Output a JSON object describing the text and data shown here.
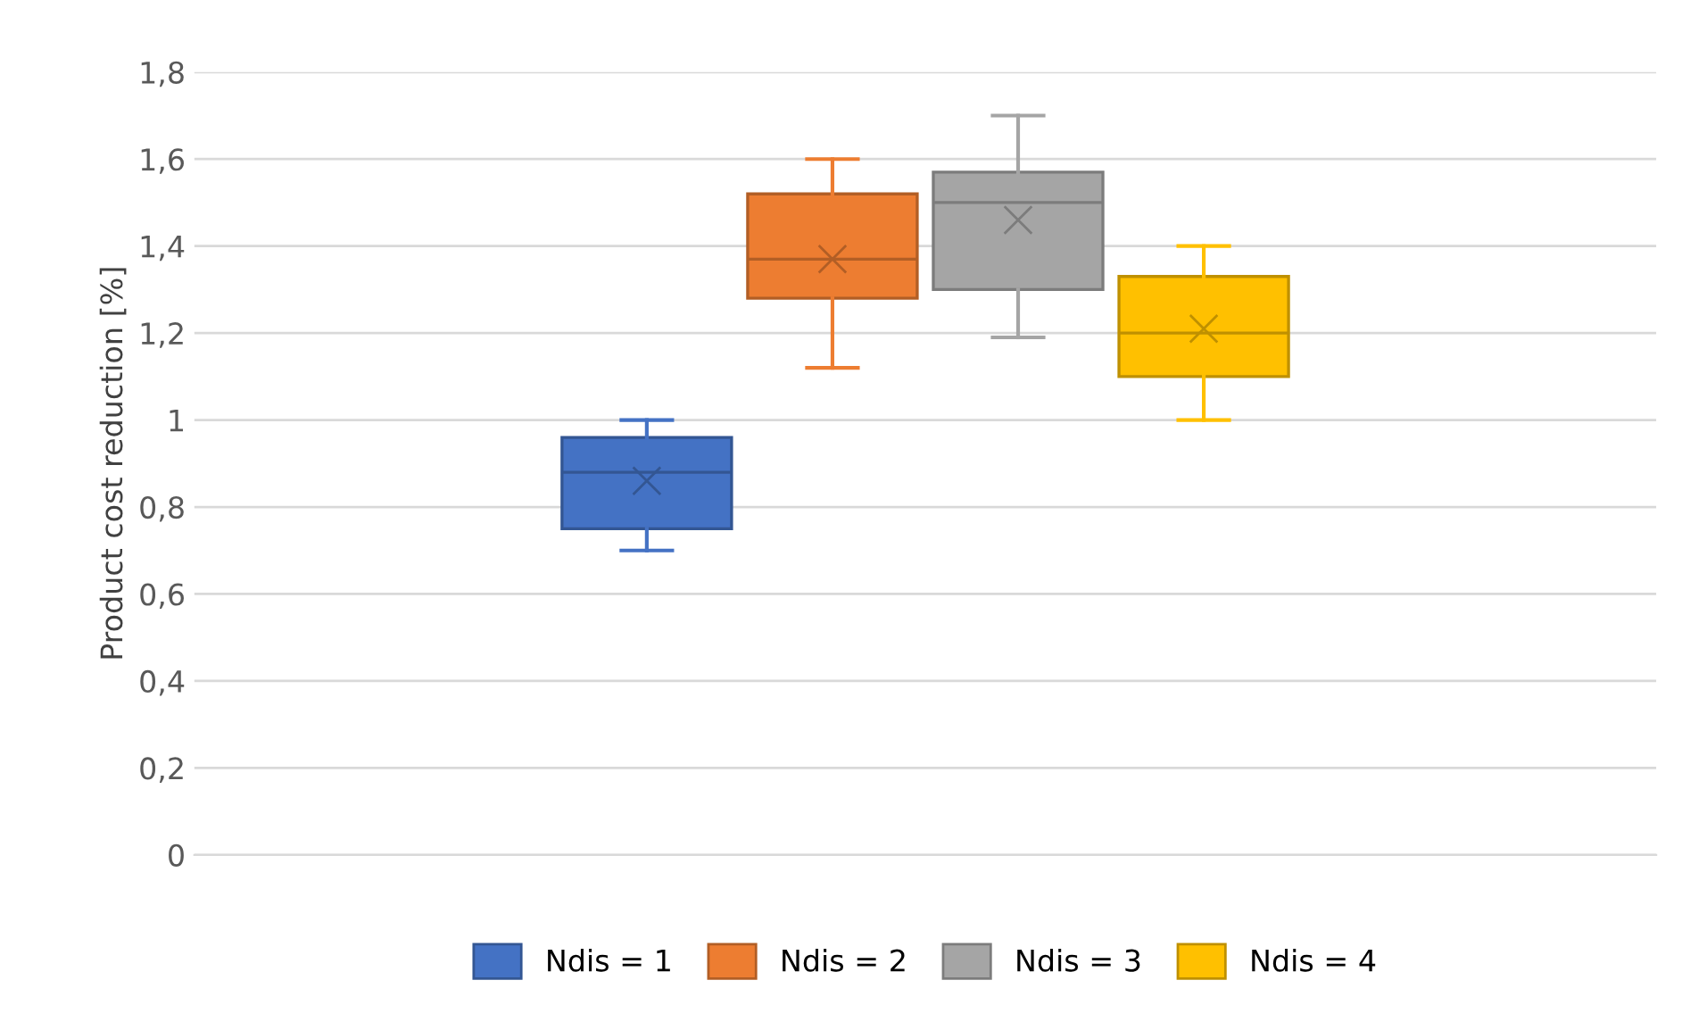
{
  "chart_data": {
    "type": "box",
    "ylabel": "Product cost reduction [%]",
    "categories": [
      null
    ],
    "ylim": [
      0,
      1.8
    ],
    "yticks": [
      0,
      {
        "value": 0.2,
        "label": "0,2"
      },
      {
        "value": 0.4,
        "label": "0,4"
      },
      {
        "value": 0.6,
        "label": "0,6"
      },
      {
        "value": 0.8,
        "label": "0,8"
      },
      1,
      {
        "value": 1.2,
        "label": "1,2"
      },
      {
        "value": 1.4,
        "label": "1,4"
      },
      {
        "value": 1.6,
        "label": "1,6"
      },
      {
        "value": 1.8,
        "label": "1,8"
      }
    ],
    "grid": "y",
    "legend": "bottom",
    "tick_labels": "y",
    "marker": "cross",
    "series": [
      {
        "name": "Ndis = 1",
        "color": "#4472c4",
        "boxes": [
          {
            "low": 0.7,
            "q1": 0.75,
            "median": 0.88,
            "q3": 0.96,
            "high": 1.0,
            "mean": 0.86
          }
        ]
      },
      {
        "name": "Ndis = 2",
        "color": "#ed7d31",
        "boxes": [
          {
            "low": 1.12,
            "q1": 1.28,
            "median": 1.37,
            "q3": 1.52,
            "high": 1.6,
            "mean": 1.37
          }
        ]
      },
      {
        "name": "Ndis = 3",
        "color": "#a5a5a5",
        "boxes": [
          {
            "low": 1.19,
            "q1": 1.3,
            "median": 1.5,
            "q3": 1.57,
            "high": 1.7,
            "mean": 1.46
          }
        ]
      },
      {
        "name": "Ndis = 4",
        "color": "#ffc000",
        "boxes": [
          {
            "low": 1.0,
            "q1": 1.1,
            "median": 1.2,
            "q3": 1.33,
            "high": 1.4,
            "mean": 1.21
          }
        ]
      }
    ]
  }
}
